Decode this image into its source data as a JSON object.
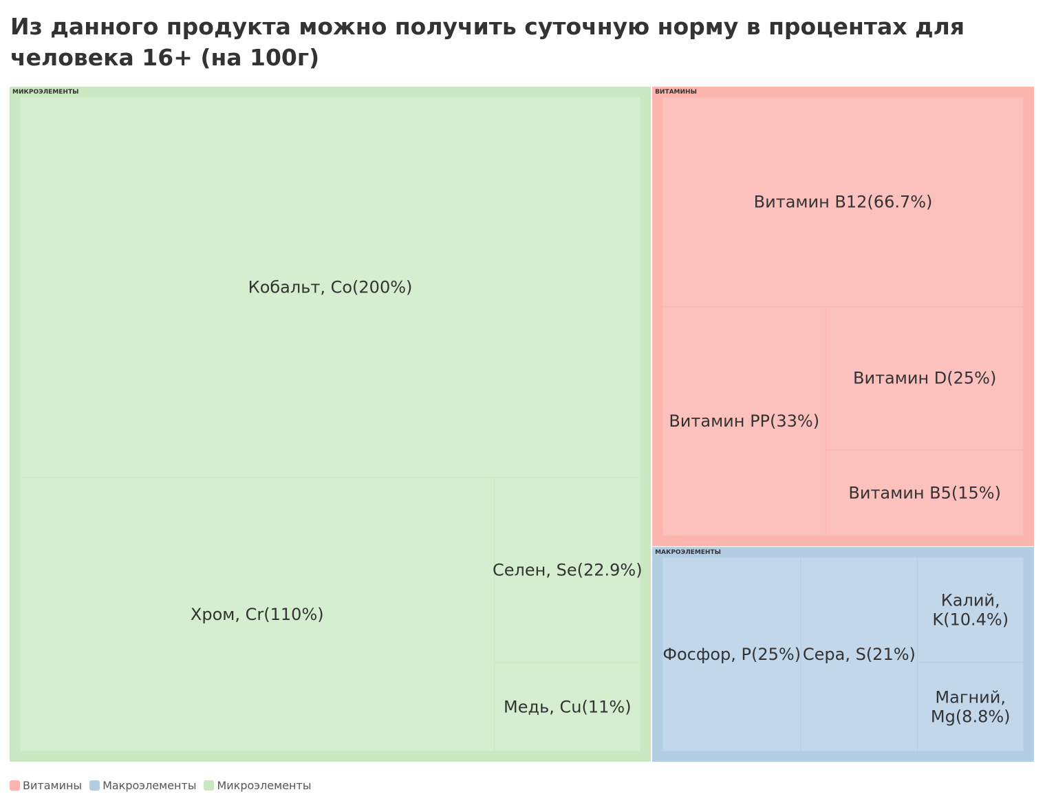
{
  "title": "Из данного продукта можно получить суточную норму в процентах для человека 16+ (на 100г)",
  "chart_data": {
    "type": "treemap",
    "unit": "%",
    "groups": [
      {
        "name": "Микроэлементы",
        "header": "МИКРОЭЛЕМЕНТЫ",
        "color": "#c9e7c1",
        "leaf_color": "#d6eed0",
        "items": [
          {
            "label": "Кобальт, Co(200%)",
            "value": 200
          },
          {
            "label": "Хром, Cr(110%)",
            "value": 110
          },
          {
            "label": "Селен, Se(22.9%)",
            "value": 22.9
          },
          {
            "label": "Медь, Cu(11%)",
            "value": 11
          }
        ]
      },
      {
        "name": "Витамины",
        "header": "ВИТАМИНЫ",
        "color": "#fbb4ae",
        "leaf_color": "#fcc1bd",
        "items": [
          {
            "label": "Витамин B12(66.7%)",
            "value": 66.7
          },
          {
            "label": "Витамин PP(33%)",
            "value": 33
          },
          {
            "label": "Витамин D(25%)",
            "value": 25
          },
          {
            "label": "Витамин B5(15%)",
            "value": 15
          }
        ]
      },
      {
        "name": "Макроэлементы",
        "header": "МАКРОЭЛЕМЕНТЫ",
        "color": "#b3cde3",
        "leaf_color": "#c2d7ea",
        "items": [
          {
            "label": "Фосфор, P(25%)",
            "value": 25
          },
          {
            "label": "Сера, S(21%)",
            "value": 21
          },
          {
            "label": "Калий, K(10.4%)",
            "value": 10.4
          },
          {
            "label": "Магний, Mg(8.8%)",
            "value": 8.8
          }
        ]
      }
    ],
    "legend": {
      "placement": "bottom-left",
      "entries": [
        {
          "label": "Витамины",
          "color": "#fbb4ae"
        },
        {
          "label": "Макроэлементы",
          "color": "#b3cde3"
        },
        {
          "label": "Микроэлементы",
          "color": "#c9e7c1"
        }
      ]
    }
  }
}
